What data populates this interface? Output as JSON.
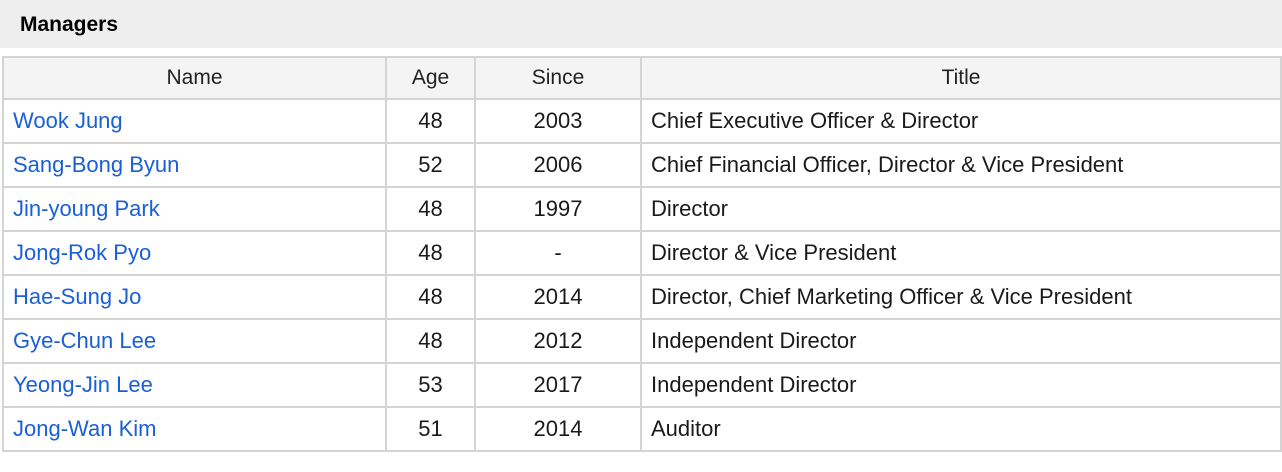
{
  "section": {
    "title": "Managers"
  },
  "table": {
    "columns": [
      "Name",
      "Age",
      "Since",
      "Title"
    ],
    "rows": [
      {
        "name": "Wook Jung",
        "age": "48",
        "since": "2003",
        "title": "Chief Executive Officer & Director"
      },
      {
        "name": "Sang-Bong Byun",
        "age": "52",
        "since": "2006",
        "title": "Chief Financial Officer, Director & Vice President"
      },
      {
        "name": "Jin-young Park",
        "age": "48",
        "since": "1997",
        "title": "Director"
      },
      {
        "name": "Jong-Rok Pyo",
        "age": "48",
        "since": "-",
        "title": "Director & Vice President"
      },
      {
        "name": "Hae-Sung Jo",
        "age": "48",
        "since": "2014",
        "title": "Director, Chief Marketing Officer & Vice President"
      },
      {
        "name": "Gye-Chun Lee",
        "age": "48",
        "since": "2012",
        "title": "Independent Director"
      },
      {
        "name": "Yeong-Jin Lee",
        "age": "53",
        "since": "2017",
        "title": "Independent Director"
      },
      {
        "name": "Jong-Wan Kim",
        "age": "51",
        "since": "2014",
        "title": "Auditor"
      }
    ]
  },
  "colors": {
    "header_bg": "#eeeeee",
    "link": "#1a5fd6",
    "border": "#d4d4d4"
  }
}
